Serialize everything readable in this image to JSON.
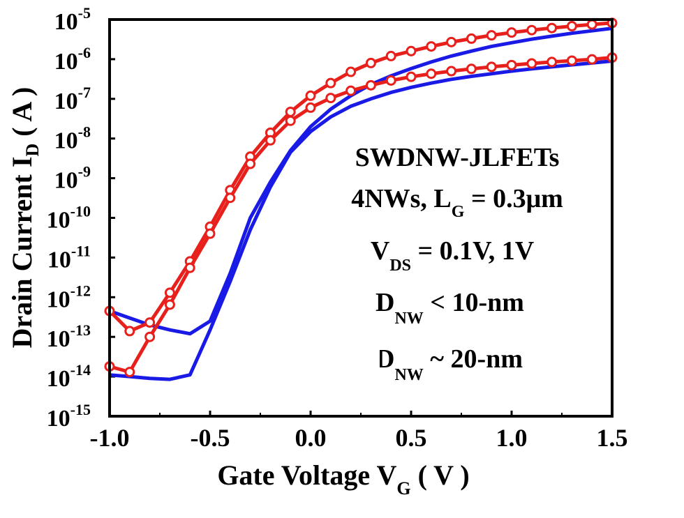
{
  "chart_data": {
    "type": "line",
    "y_scale": "log",
    "xlim": [
      -1.0,
      1.5
    ],
    "ylim": [
      1e-15,
      1e-05
    ],
    "x_ticks": [
      "-1.0",
      "-0.5",
      "0.0",
      "0.5",
      "1.0",
      "1.5"
    ],
    "x_tick_values": [
      -1.0,
      -0.5,
      0.0,
      0.5,
      1.0,
      1.5
    ],
    "y_tick_exponents": [
      "-5",
      "-6",
      "-7",
      "-8",
      "-9",
      "-10",
      "-11",
      "-12",
      "-13",
      "-14",
      "-15"
    ],
    "y_tick_base": "10",
    "xlabel": {
      "main": "Gate Voltage V",
      "sub": "G",
      "tail": " ( V )"
    },
    "ylabel": {
      "main": "Drain Current I",
      "sub": "D",
      "tail": " ( A )"
    },
    "annotations": {
      "line1": "SWDNW-JLFETs",
      "line2_main": "4NWs, L",
      "line2_sub": "G",
      "line2_tail": " = 0.3μm",
      "line3_main": "V",
      "line3_sub": "DS",
      "line3_tail": " = 0.1V, 1V",
      "line4_main": "D",
      "line4_sub": "NW",
      "line4_tail": " < 10-nm",
      "line5_main": "D",
      "line5_sub": "NW",
      "line5_tail": " ~ 20-nm"
    },
    "series": [
      {
        "color": "#e8201c",
        "marker": "circle",
        "x": [
          -1.0,
          -0.9,
          -0.8,
          -0.7,
          -0.6,
          -0.5,
          -0.4,
          -0.3,
          -0.2,
          -0.1,
          0.0,
          0.1,
          0.2,
          0.3,
          0.4,
          0.5,
          0.6,
          0.7,
          0.8,
          0.9,
          1.0,
          1.1,
          1.2,
          1.3,
          1.4,
          1.5
        ],
        "y": [
          4.5e-13,
          1.4e-13,
          2.3e-13,
          1.3e-12,
          8e-12,
          6e-11,
          5e-10,
          3.5e-09,
          1.4e-08,
          4.7e-08,
          1.2e-07,
          2.5e-07,
          4.8e-07,
          8e-07,
          1.2e-06,
          1.6e-06,
          2.1e-06,
          2.7e-06,
          3.3e-06,
          4e-06,
          4.7e-06,
          5.4e-06,
          6.1e-06,
          6.8e-06,
          7.5e-06,
          8.2e-06
        ]
      },
      {
        "color": "#e8201c",
        "marker": "circle",
        "x": [
          -1.0,
          -0.9,
          -0.8,
          -0.7,
          -0.6,
          -0.5,
          -0.4,
          -0.3,
          -0.2,
          -0.1,
          0.0,
          0.1,
          0.2,
          0.3,
          0.4,
          0.5,
          0.6,
          0.7,
          0.8,
          0.9,
          1.0,
          1.1,
          1.2,
          1.3,
          1.4,
          1.5
        ],
        "y": [
          1.8e-14,
          1.3e-14,
          1e-13,
          6.5e-13,
          5.5e-12,
          4e-11,
          3.2e-10,
          2.3e-09,
          9e-09,
          2.8e-08,
          6e-08,
          1.05e-07,
          1.6e-07,
          2.2e-07,
          2.9e-07,
          3.6e-07,
          4.3e-07,
          5e-07,
          5.7e-07,
          6.4e-07,
          7.1e-07,
          7.8e-07,
          8.5e-07,
          9.2e-07,
          9.9e-07,
          1.1e-06
        ]
      },
      {
        "color": "#1a1ae6",
        "marker": "none",
        "x": [
          -1.0,
          -0.9,
          -0.8,
          -0.7,
          -0.6,
          -0.5,
          -0.4,
          -0.3,
          -0.2,
          -0.1,
          0.0,
          0.1,
          0.2,
          0.3,
          0.4,
          0.5,
          0.6,
          0.7,
          0.8,
          0.9,
          1.0,
          1.1,
          1.2,
          1.3,
          1.4,
          1.5
        ],
        "y": [
          4.5e-13,
          3e-13,
          2e-13,
          1.5e-13,
          1.2e-13,
          2.5e-13,
          4e-12,
          1e-10,
          8e-10,
          5e-09,
          2e-08,
          5.5e-08,
          1.2e-07,
          2.3e-07,
          3.8e-07,
          5.8e-07,
          8.5e-07,
          1.2e-06,
          1.6e-06,
          2.1e-06,
          2.6e-06,
          3.2e-06,
          3.8e-06,
          4.5e-06,
          5.2e-06,
          6e-06
        ]
      },
      {
        "color": "#1a1ae6",
        "marker": "none",
        "x": [
          -1.0,
          -0.9,
          -0.8,
          -0.7,
          -0.6,
          -0.5,
          -0.4,
          -0.3,
          -0.2,
          -0.1,
          0.0,
          0.1,
          0.2,
          0.3,
          0.4,
          0.5,
          0.6,
          0.7,
          0.8,
          0.9,
          1.0,
          1.1,
          1.2,
          1.3,
          1.4,
          1.5
        ],
        "y": [
          1.1e-14,
          1e-14,
          9e-15,
          8.5e-15,
          1.1e-14,
          1.5e-13,
          2.5e-12,
          5e-11,
          6e-10,
          4.5e-09,
          1.5e-08,
          3.5e-08,
          6.5e-08,
          1e-07,
          1.45e-07,
          1.95e-07,
          2.5e-07,
          3.1e-07,
          3.7e-07,
          4.3e-07,
          5e-07,
          5.7e-07,
          6.4e-07,
          7.2e-07,
          8e-07,
          9e-07
        ]
      }
    ]
  }
}
